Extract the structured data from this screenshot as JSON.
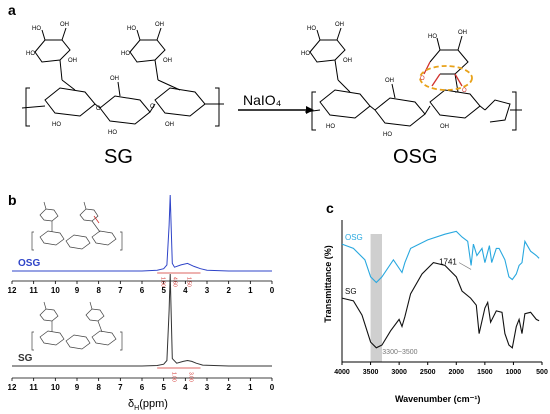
{
  "panel_a": {
    "letter": "a",
    "reagent": "NaIO₄",
    "left_label": "SG",
    "right_label": "OSG"
  },
  "panel_b": {
    "letter": "b",
    "series": [
      {
        "name": "OSG",
        "color": "#2f44c8",
        "integrals": [
          "1.00",
          "4.60",
          "1.50"
        ]
      },
      {
        "name": "SG",
        "color": "#333333",
        "integrals": [
          "1.00",
          "3.00"
        ]
      }
    ],
    "x_ticks": [
      "12",
      "11",
      "10",
      "9",
      "8",
      "7",
      "6",
      "5",
      "4",
      "3",
      "2",
      "1",
      "0"
    ],
    "xlabel": "δH(ppm)",
    "xlabel_main": "δ",
    "xlabel_sub": "H",
    "xlabel_unit": "(ppm)"
  },
  "panel_c": {
    "letter": "c",
    "ylabel": "Transmittance (%)",
    "xlabel": "Wavenumber (cm⁻¹)",
    "x_ticks": [
      "4000",
      "3500",
      "3000",
      "2500",
      "2000",
      "1500",
      "1000",
      "500"
    ],
    "series": [
      {
        "name": "OSG",
        "color": "#29a8df"
      },
      {
        "name": "SG",
        "color": "#111111"
      }
    ],
    "annotation_peak": "1741",
    "annotation_band": "3300~3500",
    "band_color": "#cfcfcf"
  },
  "chart_data": [
    {
      "type": "line",
      "panel": "b",
      "xlabel": "δH(ppm)",
      "ylabel": "",
      "xlim": [
        12,
        0
      ],
      "x_reversed": true,
      "series": [
        {
          "name": "OSG",
          "x": [
            12,
            8,
            6,
            5.3,
            5.0,
            4.85,
            4.75,
            4.7,
            4.6,
            4.5,
            4.2,
            3.9,
            3.6,
            3.3,
            3.0,
            2,
            0
          ],
          "y": [
            0,
            0,
            0,
            0.01,
            0.03,
            0.08,
            0.6,
            1.0,
            0.1,
            0.05,
            0.08,
            0.1,
            0.06,
            0.03,
            0.01,
            0,
            0
          ]
        },
        {
          "name": "SG",
          "x": [
            12,
            8,
            6,
            5.3,
            5.0,
            4.85,
            4.75,
            4.7,
            4.6,
            4.4,
            4.1,
            3.9,
            3.7,
            3.5,
            3.2,
            2,
            0
          ],
          "y": [
            0,
            0,
            0,
            0.005,
            0.02,
            0.06,
            0.6,
            1.0,
            0.08,
            0.03,
            0.05,
            0.06,
            0.05,
            0.03,
            0.01,
            0,
            0
          ]
        }
      ]
    },
    {
      "type": "line",
      "panel": "c",
      "xlabel": "Wavenumber (cm⁻¹)",
      "ylabel": "Transmittance (%)",
      "xlim": [
        4000,
        500
      ],
      "x_reversed": true,
      "series": [
        {
          "name": "OSG",
          "x": [
            4000,
            3800,
            3600,
            3500,
            3400,
            3300,
            3100,
            2950,
            2900,
            2800,
            2500,
            2200,
            2000,
            1900,
            1800,
            1741,
            1700,
            1640,
            1550,
            1500,
            1420,
            1380,
            1300,
            1250,
            1150,
            1080,
            1020,
            950,
            900,
            850,
            800,
            700,
            600,
            550
          ],
          "y": [
            0.83,
            0.8,
            0.72,
            0.6,
            0.56,
            0.6,
            0.72,
            0.63,
            0.7,
            0.8,
            0.86,
            0.9,
            0.92,
            0.88,
            0.85,
            0.68,
            0.83,
            0.75,
            0.8,
            0.7,
            0.82,
            0.7,
            0.8,
            0.8,
            0.72,
            0.6,
            0.58,
            0.62,
            0.68,
            0.7,
            0.85,
            0.78,
            0.75,
            0.73
          ]
        },
        {
          "name": "SG",
          "x": [
            4000,
            3800,
            3650,
            3500,
            3400,
            3300,
            3150,
            3000,
            2950,
            2900,
            2800,
            2600,
            2400,
            2200,
            2000,
            1900,
            1750,
            1650,
            1600,
            1500,
            1450,
            1400,
            1300,
            1200,
            1150,
            1080,
            1020,
            950,
            900,
            850,
            800,
            700,
            600,
            550
          ],
          "y": [
            0.45,
            0.43,
            0.33,
            0.14,
            0.1,
            0.12,
            0.22,
            0.3,
            0.25,
            0.32,
            0.48,
            0.62,
            0.7,
            0.68,
            0.6,
            0.5,
            0.45,
            0.4,
            0.2,
            0.38,
            0.42,
            0.28,
            0.36,
            0.35,
            0.2,
            0.12,
            0.1,
            0.25,
            0.3,
            0.2,
            0.34,
            0.35,
            0.3,
            0.29
          ]
        }
      ]
    }
  ]
}
